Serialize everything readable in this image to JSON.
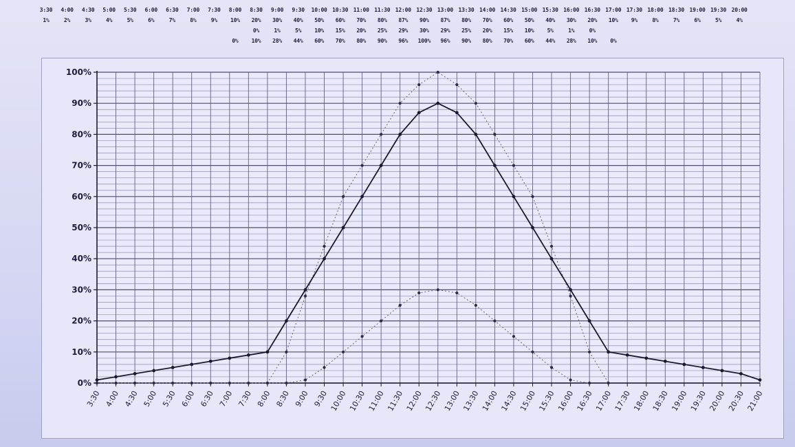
{
  "chart_data": {
    "type": "line",
    "title": "",
    "xlabel": "",
    "ylabel": "",
    "ylim": [
      0,
      100
    ],
    "y_ticks": [
      "0%",
      "10%",
      "20%",
      "30%",
      "40%",
      "50%",
      "60%",
      "70%",
      "80%",
      "90%",
      "100%"
    ],
    "grid": true,
    "legend": "none",
    "categories": [
      "3:30",
      "4:00",
      "4:30",
      "5:00",
      "5:30",
      "6:00",
      "6:30",
      "7:00",
      "7:30",
      "8:00",
      "8:30",
      "9:00",
      "9:30",
      "10:00",
      "10:30",
      "11:00",
      "11:30",
      "12:00",
      "12:30",
      "13:00",
      "13:30",
      "14:00",
      "14:30",
      "15:00",
      "15:30",
      "16:00",
      "16:30",
      "17:00",
      "17:30",
      "18:00",
      "18:30",
      "19:00",
      "19:30",
      "20:00",
      "20:30",
      "21:00"
    ],
    "series": [
      {
        "style": "solid",
        "color": "#1a1b2e",
        "values": [
          1,
          2,
          3,
          4,
          5,
          6,
          7,
          8,
          9,
          10,
          20,
          30,
          40,
          50,
          60,
          70,
          80,
          87,
          90,
          87,
          80,
          70,
          60,
          50,
          40,
          30,
          20,
          10,
          9,
          8,
          7,
          6,
          5,
          4,
          3,
          1
        ]
      },
      {
        "style": "dotted",
        "color": "#6a6c8c",
        "values": [
          0,
          0,
          0,
          0,
          0,
          0,
          0,
          0,
          0,
          0,
          0,
          1,
          5,
          10,
          15,
          20,
          25,
          29,
          30,
          29,
          25,
          20,
          15,
          10,
          5,
          1,
          0,
          null,
          null,
          null,
          null,
          null,
          null,
          null,
          null,
          null
        ]
      },
      {
        "style": "dotted",
        "color": "#6a6c8c",
        "values": [
          null,
          null,
          null,
          null,
          null,
          null,
          null,
          null,
          null,
          0,
          10,
          28,
          44,
          60,
          70,
          80,
          90,
          96,
          100,
          96,
          90,
          80,
          70,
          60,
          44,
          28,
          10,
          0,
          null,
          null,
          null,
          null,
          null,
          null,
          null,
          null
        ]
      }
    ]
  },
  "data_table": {
    "columns": [
      "3:30",
      "4:00",
      "4:30",
      "5:00",
      "5:30",
      "6:00",
      "6:30",
      "7:00",
      "7:30",
      "8:00",
      "8:30",
      "9:00",
      "9:30",
      "10:00",
      "10:30",
      "11:00",
      "11:30",
      "12:00",
      "12:30",
      "13:00",
      "13:30",
      "14:00",
      "14:30",
      "15:00",
      "15:30",
      "16:00",
      "16:30",
      "17:00",
      "17:30",
      "18:00",
      "18:30",
      "19:00",
      "19:30",
      "20:00"
    ],
    "rows": [
      [
        "1%",
        "2%",
        "3%",
        "4%",
        "5%",
        "6%",
        "7%",
        "8%",
        "9%",
        "10%",
        "20%",
        "30%",
        "40%",
        "50%",
        "60%",
        "70%",
        "80%",
        "87%",
        "90%",
        "87%",
        "80%",
        "70%",
        "60%",
        "50%",
        "40%",
        "30%",
        "20%",
        "10%",
        "9%",
        "8%",
        "7%",
        "6%",
        "5%",
        "4%"
      ],
      [
        "",
        "",
        "",
        "",
        "",
        "",
        "",
        "",
        "",
        "",
        "0%",
        "1%",
        "5%",
        "10%",
        "15%",
        "20%",
        "25%",
        "29%",
        "30%",
        "29%",
        "25%",
        "20%",
        "15%",
        "10%",
        "5%",
        "1%",
        "0%",
        "",
        "",
        "",
        "",
        "",
        "",
        ""
      ],
      [
        "",
        "",
        "",
        "",
        "",
        "",
        "",
        "",
        "",
        "0%",
        "10%",
        "28%",
        "44%",
        "60%",
        "70%",
        "80%",
        "90%",
        "96%",
        "100%",
        "96%",
        "90%",
        "80%",
        "70%",
        "60%",
        "44%",
        "28%",
        "10%",
        "0%",
        "",
        "",
        "",
        "",
        "",
        ""
      ]
    ]
  }
}
